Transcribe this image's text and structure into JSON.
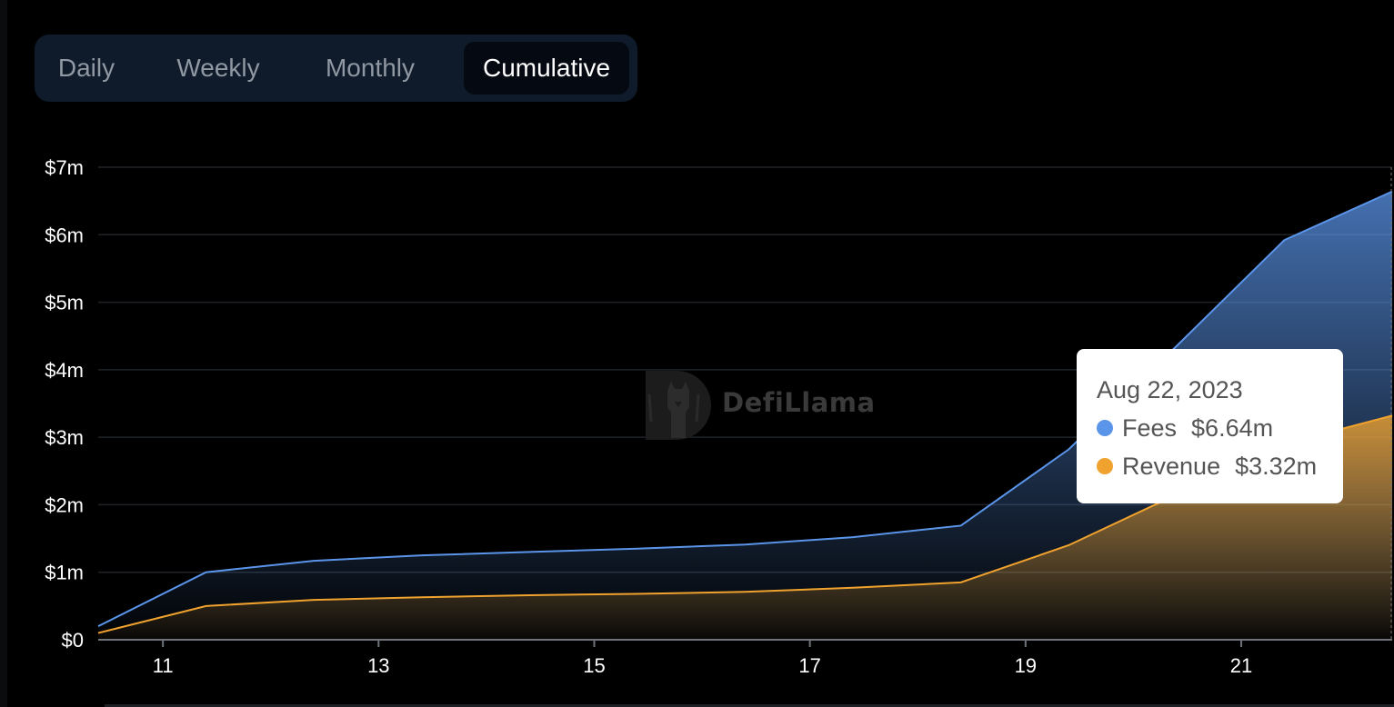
{
  "tabs": [
    {
      "label": "Daily",
      "active": false
    },
    {
      "label": "Weekly",
      "active": false
    },
    {
      "label": "Monthly",
      "active": false
    },
    {
      "label": "Cumulative",
      "active": true
    }
  ],
  "watermark": {
    "text": "DefiLlama"
  },
  "tooltip": {
    "date": "Aug 22, 2023",
    "items": [
      {
        "name": "Fees",
        "value": "$6.64m",
        "color": "#5b95ea"
      },
      {
        "name": "Revenue",
        "value": "$3.32m",
        "color": "#f0a22e"
      }
    ]
  },
  "chart_data": {
    "type": "area",
    "x": [
      10.4,
      11.4,
      12.4,
      13.4,
      14.4,
      15.4,
      16.4,
      17.4,
      18.4,
      19.4,
      20.4,
      21.4,
      22.4
    ],
    "x_ticks": [
      11,
      13,
      15,
      17,
      19,
      21
    ],
    "x_tick_labels": [
      "11",
      "13",
      "15",
      "17",
      "19",
      "21"
    ],
    "xlim": [
      10.4,
      22.4
    ],
    "ylim": [
      0,
      7
    ],
    "y_ticks": [
      0,
      1,
      2,
      3,
      4,
      5,
      6,
      7
    ],
    "y_tick_labels": [
      "$0",
      "$1m",
      "$2m",
      "$3m",
      "$4m",
      "$5m",
      "$6m",
      "$7m"
    ],
    "grid": true,
    "series": [
      {
        "name": "Fees",
        "color": "#5b95ea",
        "values": [
          0.2,
          1.0,
          1.17,
          1.25,
          1.3,
          1.35,
          1.41,
          1.52,
          1.69,
          2.82,
          4.35,
          5.92,
          6.64
        ]
      },
      {
        "name": "Revenue",
        "color": "#f0a22e",
        "values": [
          0.1,
          0.5,
          0.59,
          0.63,
          0.66,
          0.68,
          0.71,
          0.77,
          0.85,
          1.4,
          2.15,
          2.9,
          3.32
        ]
      }
    ]
  }
}
